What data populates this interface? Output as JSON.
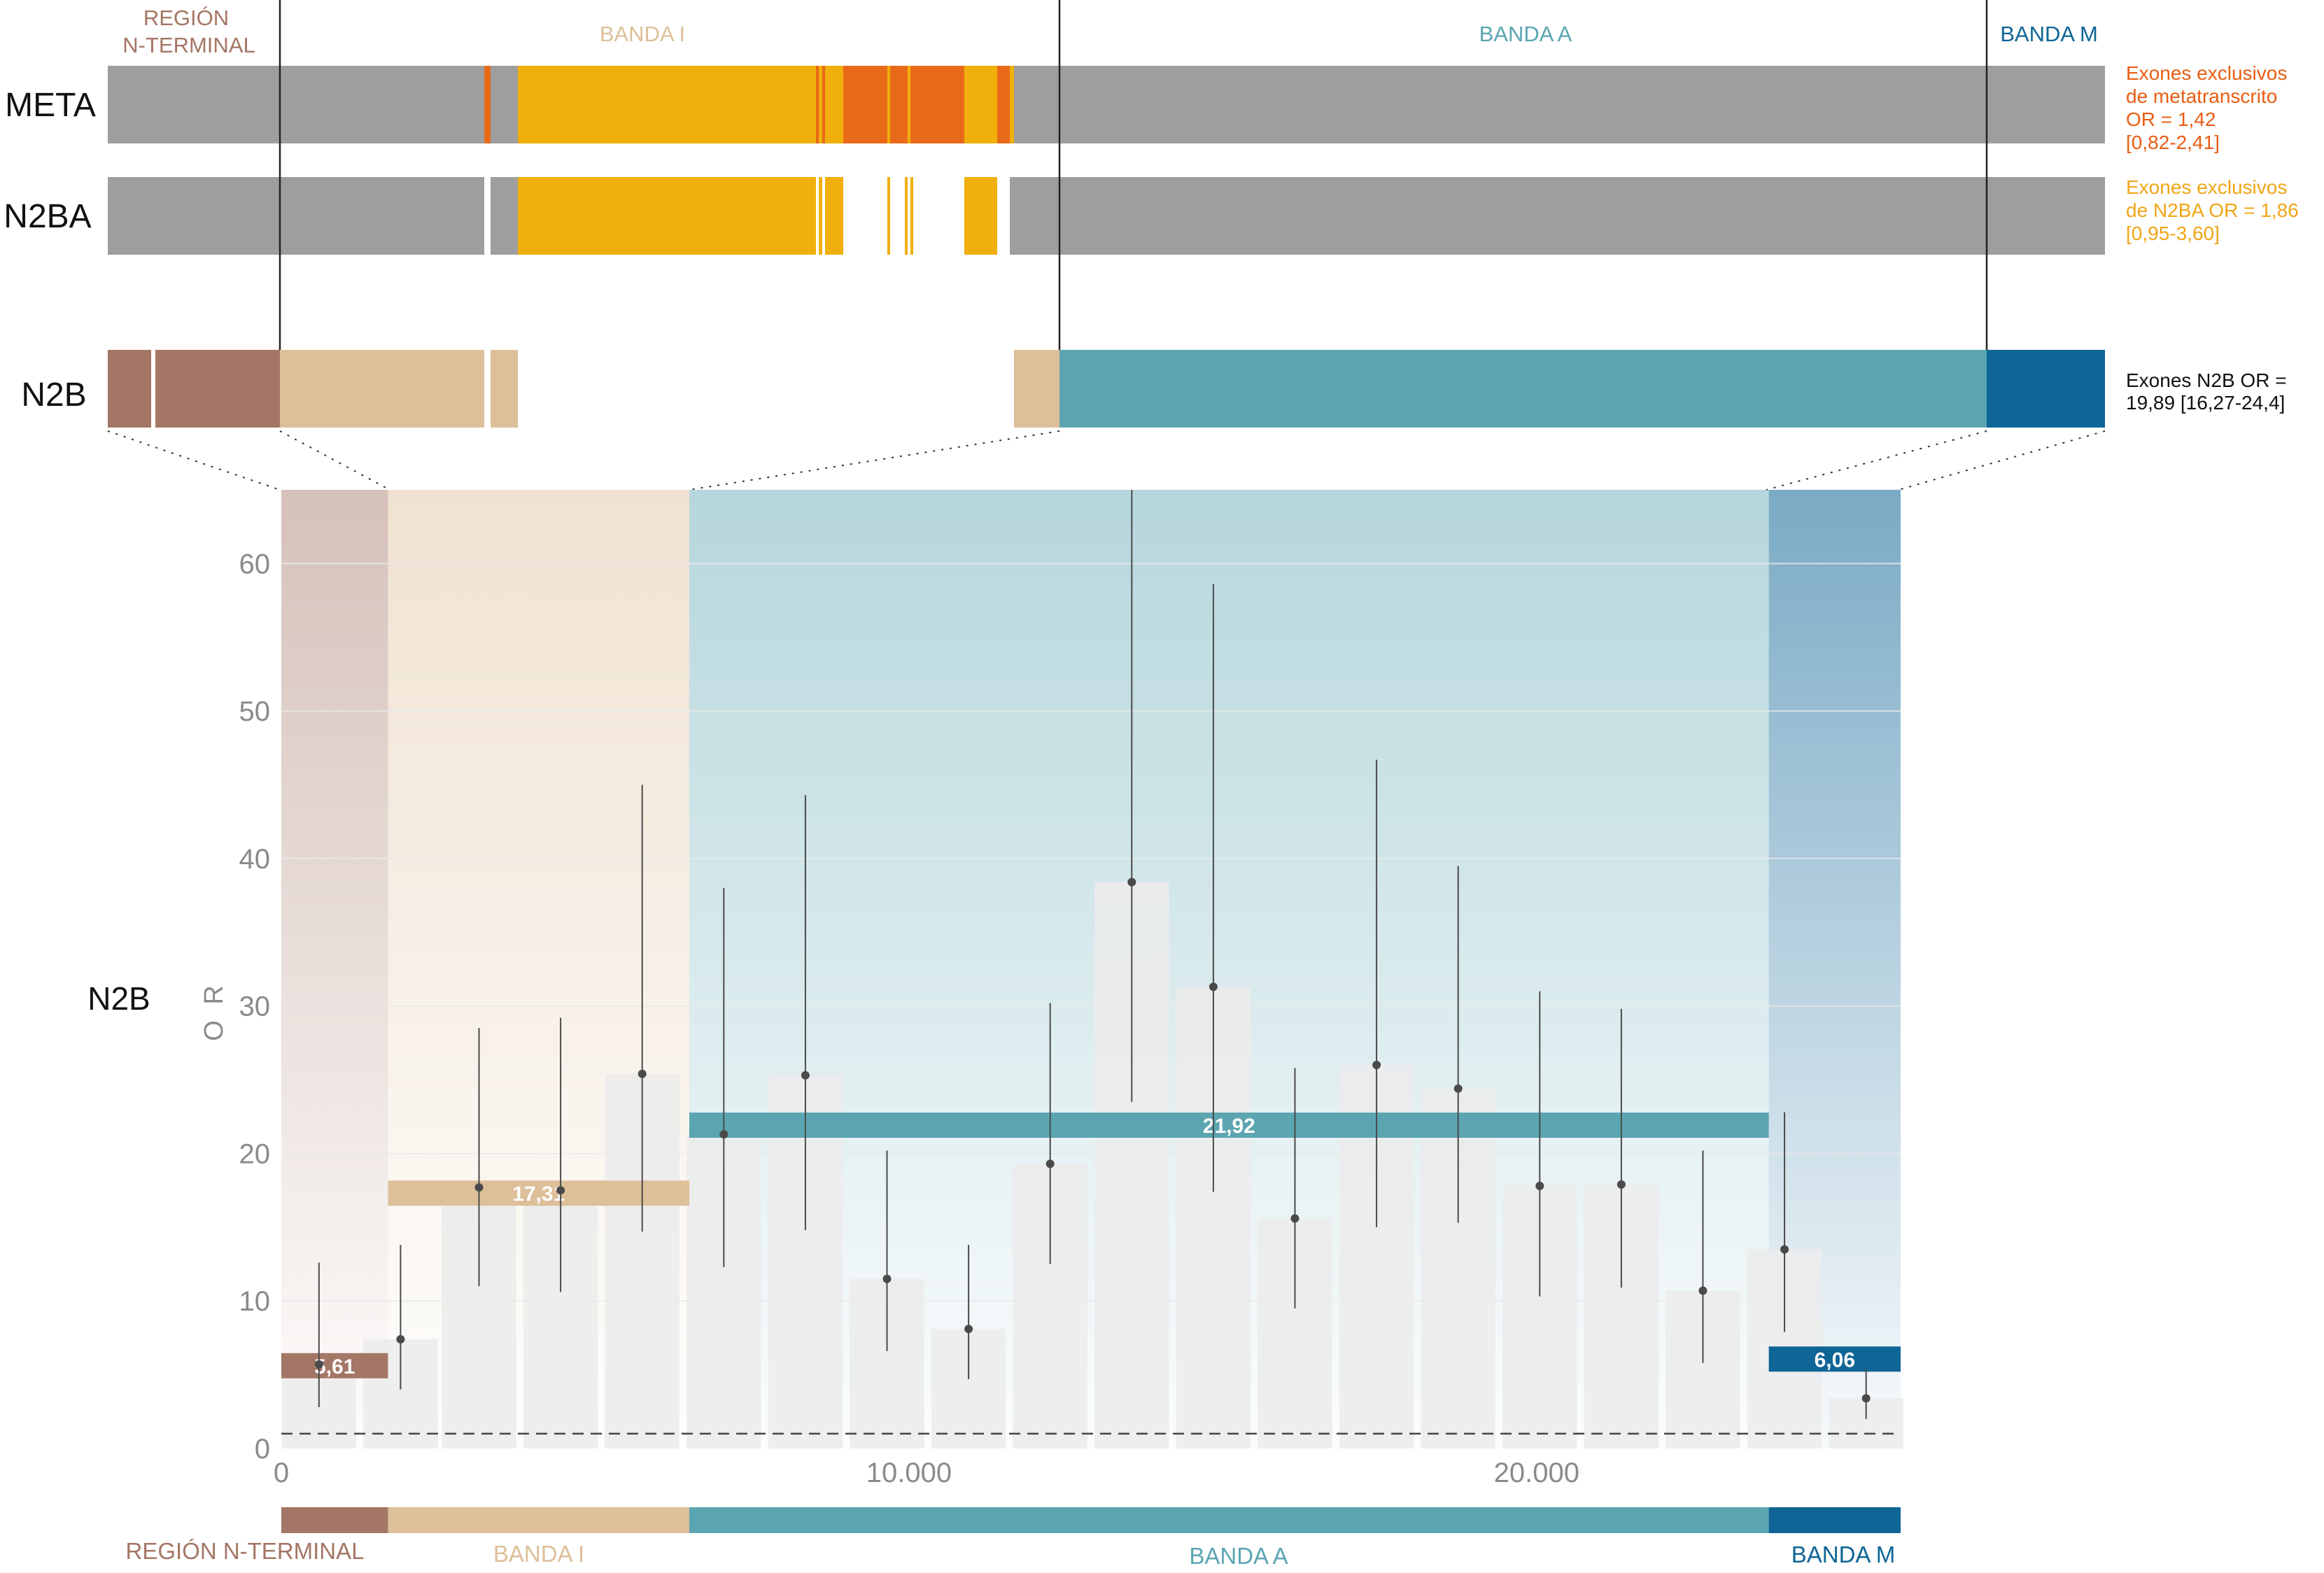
{
  "colors": {
    "nterm": "#A47665",
    "bandaI": "#DDBF99",
    "bandaA": "#5BA5B1",
    "bandaM": "#0E6596",
    "grey": "#9E9E9E",
    "yellow": "#F0AF0C",
    "orange": "#E86A18",
    "bar": "#ECECEC",
    "pointLine": "#4A4A4A",
    "axis": "#8A8A8A",
    "metaNote": "#E85D12",
    "n2baNote": "#F0A516"
  },
  "header": {
    "regions": [
      {
        "label1": "REGIÓN",
        "label2": "N-TERMINAL"
      },
      {
        "label1": "BANDA I"
      },
      {
        "label1": "BANDA A"
      },
      {
        "label1": "BANDA M"
      }
    ]
  },
  "tracks": {
    "meta": {
      "label": "META",
      "note": [
        "Exones exclusivos",
        "de metatranscrito",
        "OR = 1,42",
        "[0,82-2,41]"
      ]
    },
    "n2ba": {
      "label": "N2BA",
      "note": [
        "Exones exclusivos",
        "de N2BA OR = 1,86",
        "[0,95-3,60]"
      ]
    },
    "n2b": {
      "label": "N2B",
      "note": [
        "Exones N2B OR =",
        "19,89 [16,27-24,4]"
      ]
    }
  },
  "panel": {
    "row_label": "N2B",
    "footer_regions": [
      {
        "label": "REGIÓN N-TERMINAL"
      },
      {
        "label": "BANDA I"
      },
      {
        "label": "BANDA A"
      },
      {
        "label": "BANDA M"
      }
    ]
  },
  "chart_data": {
    "type": "bar",
    "title": "",
    "xlabel": "",
    "ylabel": "O R",
    "xlim": [
      0,
      25800
    ],
    "ylim": [
      0,
      65
    ],
    "x_ticks": [
      0,
      10000,
      20000
    ],
    "x_tick_labels": [
      "0",
      "10.000",
      "20.000"
    ],
    "y_ticks": [
      0,
      10,
      20,
      30,
      40,
      50,
      60
    ],
    "y_tick_labels": [
      "0",
      "10",
      "20",
      "30",
      "40",
      "50",
      "60"
    ],
    "grid": true,
    "reference_line": 1,
    "regions": [
      {
        "name": "REGIÓN N-TERMINAL",
        "start": 0,
        "end": 1700
      },
      {
        "name": "BANDA I",
        "start": 1700,
        "end": 6500
      },
      {
        "name": "BANDA A",
        "start": 6500,
        "end": 23700
      },
      {
        "name": "BANDA M",
        "start": 23700,
        "end": 25800
      }
    ],
    "region_or": [
      {
        "region": "REGIÓN N-TERMINAL",
        "value": 5.61,
        "label": "5,61"
      },
      {
        "region": "BANDA I",
        "value": 17.31,
        "label": "17,31"
      },
      {
        "region": "BANDA A",
        "value": 21.92,
        "label": "21,92"
      },
      {
        "region": "BANDA M",
        "value": 6.06,
        "label": "6,06"
      }
    ],
    "bins": [
      {
        "x": 600,
        "or": 5.7,
        "lo": 2.8,
        "hi": 12.6
      },
      {
        "x": 1900,
        "or": 7.4,
        "lo": 4.0,
        "hi": 13.8
      },
      {
        "x": 3150,
        "or": 17.7,
        "lo": 11.0,
        "hi": 28.5
      },
      {
        "x": 4450,
        "or": 17.5,
        "lo": 10.6,
        "hi": 29.2
      },
      {
        "x": 5750,
        "or": 25.4,
        "lo": 14.7,
        "hi": 45.0
      },
      {
        "x": 7050,
        "or": 21.3,
        "lo": 12.3,
        "hi": 38.0
      },
      {
        "x": 8350,
        "or": 25.3,
        "lo": 14.8,
        "hi": 44.3
      },
      {
        "x": 9650,
        "or": 11.5,
        "lo": 6.6,
        "hi": 20.2
      },
      {
        "x": 10950,
        "or": 8.1,
        "lo": 4.7,
        "hi": 13.8
      },
      {
        "x": 12250,
        "or": 19.3,
        "lo": 12.5,
        "hi": 30.2
      },
      {
        "x": 13550,
        "or": 38.4,
        "lo": 23.5,
        "hi": 65.0
      },
      {
        "x": 14850,
        "or": 31.3,
        "lo": 17.4,
        "hi": 58.6
      },
      {
        "x": 16150,
        "or": 15.6,
        "lo": 9.5,
        "hi": 25.8
      },
      {
        "x": 17450,
        "or": 26.0,
        "lo": 15.0,
        "hi": 46.7
      },
      {
        "x": 18750,
        "or": 24.4,
        "lo": 15.3,
        "hi": 39.5
      },
      {
        "x": 20050,
        "or": 17.8,
        "lo": 10.3,
        "hi": 31.0
      },
      {
        "x": 21350,
        "or": 17.9,
        "lo": 10.9,
        "hi": 29.8
      },
      {
        "x": 22650,
        "or": 10.7,
        "lo": 5.8,
        "hi": 20.2
      },
      {
        "x": 23950,
        "or": 13.5,
        "lo": 7.9,
        "hi": 22.8
      },
      {
        "x": 25250,
        "or": 3.4,
        "lo": 2.0,
        "hi": 5.4
      }
    ],
    "bin_width": 1300
  }
}
